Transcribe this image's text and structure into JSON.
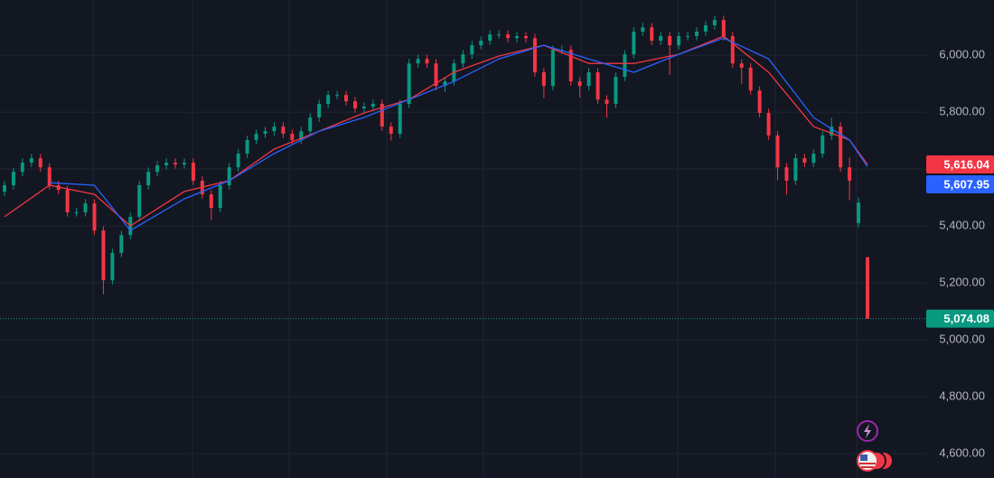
{
  "chart_data": {
    "type": "candlestick",
    "up_color": "#089981",
    "down_color": "#f23645",
    "grid": true,
    "ylim": [
      4514,
      6194
    ],
    "yticks": [
      {
        "value": 4600,
        "label": "4,600.00"
      },
      {
        "value": 4800,
        "label": "4,800.00"
      },
      {
        "value": 5000,
        "label": "5,000.00"
      },
      {
        "value": 5200,
        "label": "5,200.00"
      },
      {
        "value": 5400,
        "label": "5,400.00"
      },
      {
        "value": 5600,
        "label": "5,600.00"
      },
      {
        "value": 5800,
        "label": "5,800.00"
      },
      {
        "value": 6000,
        "label": "6,000.00"
      }
    ],
    "open": [
      5520,
      5543,
      5590,
      5622,
      5638,
      5606,
      5543,
      5527,
      5448,
      5448,
      5479,
      5384,
      5209,
      5305,
      5368,
      5432,
      5543,
      5590,
      5613,
      5622,
      5616,
      5622,
      5559,
      5511,
      5463,
      5543,
      5606,
      5654,
      5702,
      5724,
      5733,
      5749,
      5724,
      5702,
      5733,
      5781,
      5829,
      5860,
      5860,
      5838,
      5813,
      5819,
      5829,
      5749,
      5724,
      5829,
      5971,
      5987,
      5971,
      5892,
      5908,
      5971,
      6003,
      6035,
      6051,
      6073,
      6073,
      6060,
      6067,
      6060,
      5940,
      5892,
      6019,
      6019,
      5908,
      5892,
      5940,
      5844,
      5829,
      5924,
      6003,
      6083,
      6098,
      6051,
      6067,
      6035,
      6067,
      6067,
      6083,
      6105,
      6124,
      6067,
      5971,
      5956,
      5876,
      5797,
      5718,
      5606,
      5559,
      5638,
      5622,
      5654,
      5718,
      5749,
      5606,
      5410,
      5290
    ],
    "high": [
      5558,
      5605,
      5637,
      5653,
      5653,
      5621,
      5558,
      5542,
      5463,
      5494,
      5494,
      5399,
      5320,
      5383,
      5447,
      5558,
      5605,
      5628,
      5637,
      5637,
      5637,
      5637,
      5574,
      5526,
      5558,
      5621,
      5669,
      5717,
      5739,
      5748,
      5764,
      5764,
      5739,
      5748,
      5796,
      5844,
      5875,
      5875,
      5875,
      5853,
      5834,
      5844,
      5844,
      5764,
      5844,
      5986,
      6002,
      6002,
      5986,
      5923,
      5986,
      6018,
      6050,
      6066,
      6088,
      6088,
      6088,
      6082,
      6082,
      6075,
      5955,
      6034,
      6034,
      6034,
      5923,
      5955,
      5955,
      5859,
      5939,
      6018,
      6098,
      6113,
      6113,
      6082,
      6082,
      6082,
      6082,
      6098,
      6120,
      6139,
      6139,
      6082,
      5986,
      5971,
      5891,
      5812,
      5733,
      5621,
      5653,
      5653,
      5669,
      5733,
      5780,
      5764,
      5640,
      5500,
      5290
    ],
    "low": [
      5505,
      5528,
      5575,
      5607,
      5591,
      5528,
      5512,
      5433,
      5433,
      5433,
      5369,
      5160,
      5194,
      5290,
      5353,
      5417,
      5528,
      5575,
      5598,
      5601,
      5601,
      5544,
      5496,
      5420,
      5448,
      5528,
      5591,
      5639,
      5687,
      5709,
      5718,
      5709,
      5687,
      5687,
      5718,
      5766,
      5814,
      5845,
      5823,
      5798,
      5798,
      5804,
      5734,
      5700,
      5709,
      5814,
      5956,
      5956,
      5877,
      5870,
      5893,
      5956,
      5988,
      6020,
      6036,
      6058,
      6045,
      6045,
      6045,
      5925,
      5850,
      5877,
      6004,
      5893,
      5850,
      5877,
      5829,
      5780,
      5814,
      5909,
      5988,
      6068,
      6036,
      6036,
      5930,
      6020,
      6052,
      6052,
      6068,
      6090,
      6052,
      5956,
      5900,
      5861,
      5782,
      5703,
      5560,
      5510,
      5544,
      5607,
      5607,
      5639,
      5703,
      5591,
      5490,
      5395,
      5074.08
    ],
    "close": [
      5543,
      5590,
      5622,
      5638,
      5606,
      5543,
      5527,
      5448,
      5448,
      5479,
      5384,
      5209,
      5305,
      5368,
      5432,
      5543,
      5590,
      5613,
      5622,
      5616,
      5622,
      5559,
      5511,
      5463,
      5543,
      5606,
      5654,
      5702,
      5724,
      5733,
      5749,
      5724,
      5702,
      5733,
      5781,
      5829,
      5860,
      5860,
      5838,
      5813,
      5819,
      5829,
      5749,
      5724,
      5829,
      5971,
      5987,
      5971,
      5892,
      5908,
      5971,
      6003,
      6035,
      6051,
      6073,
      6073,
      6060,
      6067,
      6060,
      5940,
      5892,
      6019,
      6019,
      5908,
      5892,
      5940,
      5844,
      5829,
      5924,
      6003,
      6083,
      6098,
      6051,
      6067,
      6035,
      6067,
      6067,
      6083,
      6105,
      6124,
      6067,
      5971,
      5956,
      5876,
      5797,
      5718,
      5606,
      5559,
      5638,
      5622,
      5654,
      5718,
      5749,
      5606,
      5559,
      5482,
      5074.08
    ],
    "moving_averages": [
      {
        "color": "#f23645",
        "x": [
          0,
          5,
          10,
          14,
          20,
          25,
          30,
          35,
          40,
          45,
          50,
          55,
          60,
          65,
          70,
          75,
          80,
          85,
          90,
          94,
          96
        ],
        "values": [
          5432,
          5543,
          5511,
          5400,
          5521,
          5559,
          5670,
          5733,
          5797,
          5844,
          5940,
          5997,
          6035,
          5971,
          5971,
          6003,
          6067,
          5940,
          5749,
          5702,
          5616.04
        ]
      },
      {
        "color": "#2962ff",
        "x": [
          5,
          10,
          14,
          20,
          25,
          30,
          35,
          40,
          45,
          50,
          55,
          60,
          65,
          70,
          75,
          80,
          85,
          90,
          94,
          96
        ],
        "values": [
          5552,
          5543,
          5384,
          5495,
          5559,
          5654,
          5733,
          5781,
          5844,
          5908,
          5987,
          6035,
          5987,
          5940,
          6003,
          6060,
          5987,
          5781,
          5702,
          5607.95
        ]
      }
    ],
    "price_labels": [
      {
        "value": 5616.04,
        "label": "5,616.04",
        "color": "#f23645"
      },
      {
        "value": 5607.95,
        "label": "5,607.95",
        "color": "#2962ff"
      },
      {
        "value": 5074.08,
        "label": "5,074.08",
        "color": "#089981"
      }
    ]
  }
}
